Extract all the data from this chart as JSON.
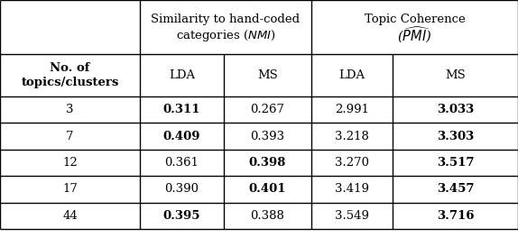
{
  "rows": [
    "3",
    "7",
    "12",
    "17",
    "44"
  ],
  "nmi_lda": [
    "0.311",
    "0.409",
    "0.361",
    "0.390",
    "0.395"
  ],
  "nmi_ms": [
    "0.267",
    "0.393",
    "0.398",
    "0.401",
    "0.388"
  ],
  "pmi_lda": [
    "2.991",
    "3.218",
    "3.270",
    "3.419",
    "3.549"
  ],
  "pmi_ms": [
    "3.033",
    "3.303",
    "3.517",
    "3.457",
    "3.716"
  ],
  "nmi_lda_bold": [
    true,
    true,
    false,
    false,
    true
  ],
  "nmi_ms_bold": [
    false,
    false,
    true,
    true,
    false
  ],
  "pmi_lda_bold": [
    false,
    false,
    false,
    false,
    false
  ],
  "pmi_ms_bold": [
    true,
    true,
    true,
    true,
    true
  ],
  "figsize": [
    5.74,
    2.64
  ],
  "dpi": 100,
  "fs": 9.5,
  "fs_hdr": 9.5
}
